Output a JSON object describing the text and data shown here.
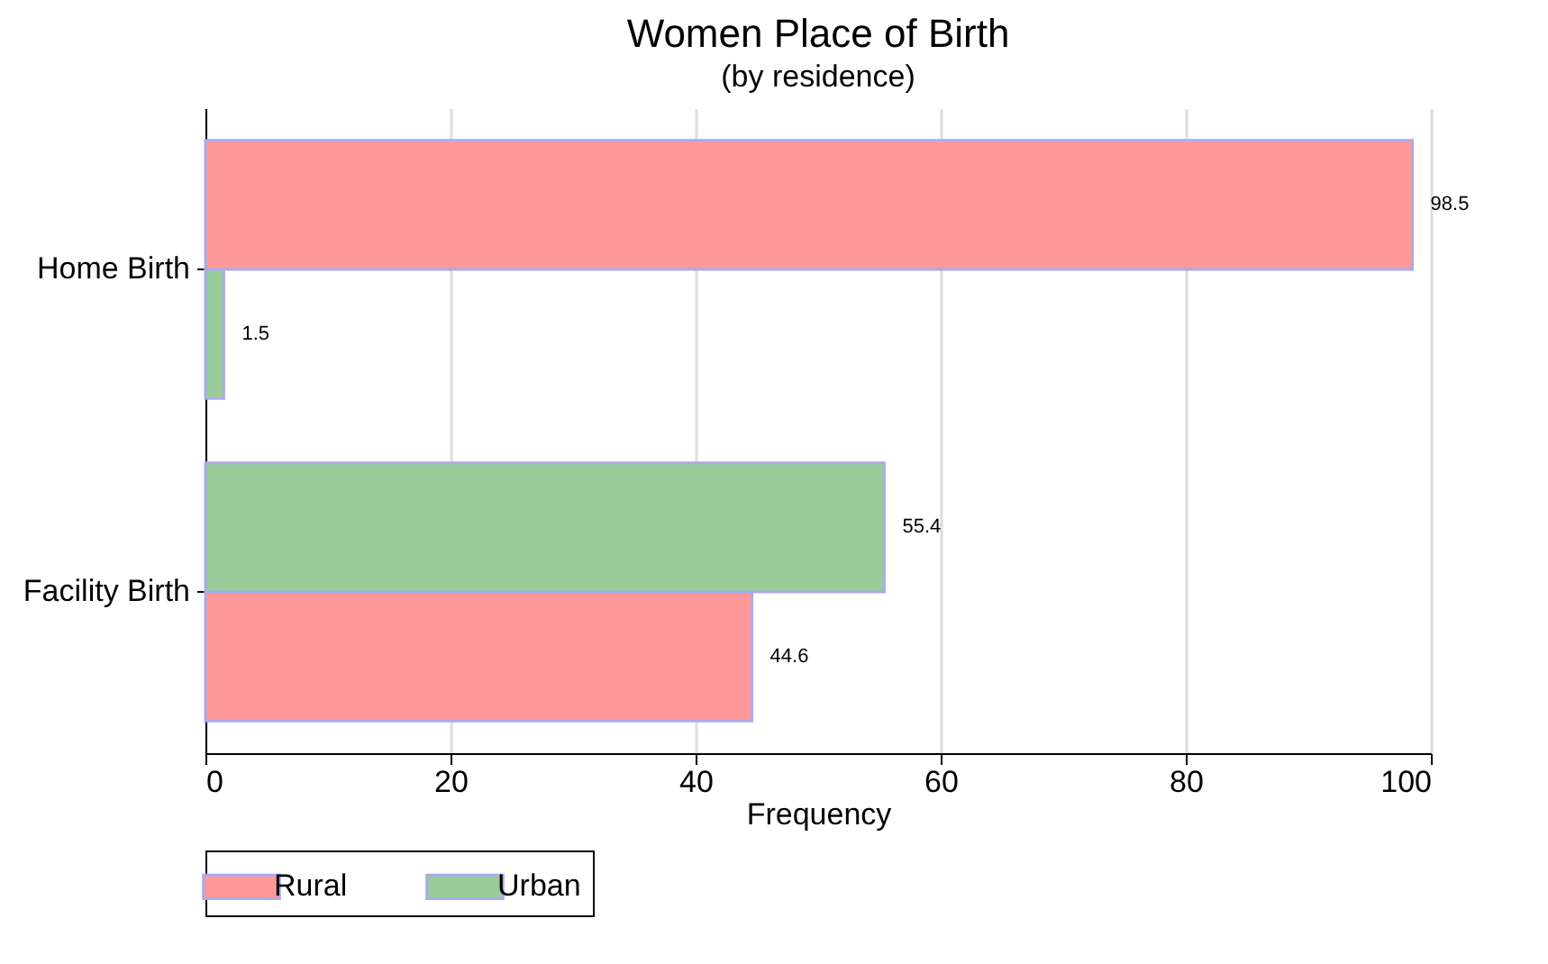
{
  "chart_data": {
    "type": "bar",
    "orientation": "horizontal",
    "title": "Women Place of Birth",
    "subtitle": "(by residence)",
    "xlabel": "Frequency",
    "categories": [
      "Home Birth",
      "Facility Birth"
    ],
    "series": [
      {
        "name": "Rural",
        "color": "#ff9999",
        "values": [
          98.5,
          44.6
        ]
      },
      {
        "name": "Urban",
        "color": "#99cc99",
        "values": [
          1.5,
          55.4
        ]
      }
    ],
    "xlim": [
      0,
      100
    ],
    "xticks": [
      0,
      20,
      40,
      60,
      80,
      100
    ],
    "grid": "x",
    "legend": "bottom",
    "data_labels": true
  }
}
